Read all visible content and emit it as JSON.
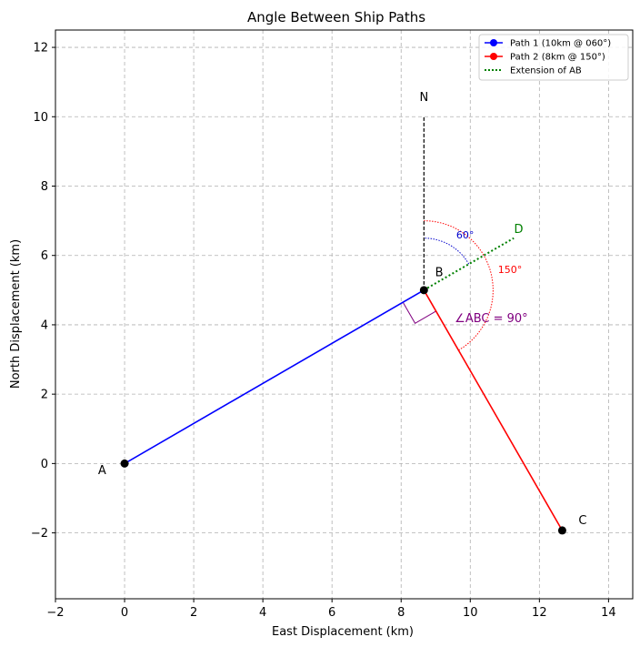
{
  "chart_data": {
    "type": "line",
    "title": "Angle Between Ship Paths",
    "xlabel": "East Displacement (km)",
    "ylabel": "North Displacement (km)",
    "xlim": [
      -2,
      14.7
    ],
    "ylim": [
      -3.9,
      12.5
    ],
    "xticks": [
      -2,
      0,
      2,
      4,
      6,
      8,
      10,
      12,
      14
    ],
    "yticks": [
      -2,
      0,
      2,
      4,
      6,
      8,
      10,
      12
    ],
    "tick_labels_x": [
      "−2",
      "0",
      "2",
      "4",
      "6",
      "8",
      "10",
      "12",
      "14"
    ],
    "tick_labels_y": [
      "−2",
      "0",
      "2",
      "4",
      "6",
      "8",
      "10",
      "12"
    ],
    "grid": true,
    "legend_position": "top-right",
    "series": [
      {
        "name": "Path 1 (10km @ 060°)",
        "color": "#0000ff",
        "style": "solid",
        "marker": "circle",
        "x": [
          0,
          8.66
        ],
        "y": [
          0,
          5.0
        ]
      },
      {
        "name": "Path 2 (8km @ 150°)",
        "color": "#ff0000",
        "style": "solid",
        "marker": "circle",
        "x": [
          8.66,
          12.66
        ],
        "y": [
          5.0,
          -1.93
        ]
      },
      {
        "name": "Extension of AB",
        "color": "#008000",
        "style": "dotted",
        "marker": "none",
        "x": [
          8.66,
          11.26
        ],
        "y": [
          5.0,
          6.5
        ]
      }
    ],
    "north_line": {
      "x": [
        8.66,
        8.66
      ],
      "y": [
        5.0,
        10.0
      ],
      "label": "N",
      "label_xy": [
        8.66,
        10.45
      ]
    },
    "points": [
      {
        "label": "A",
        "x": 0,
        "y": 0,
        "label_xy": [
          -0.65,
          -0.3
        ]
      },
      {
        "label": "B",
        "x": 8.66,
        "y": 5.0,
        "label_xy": [
          9.1,
          5.4
        ]
      },
      {
        "label": "C",
        "x": 12.66,
        "y": -1.93,
        "label_xy": [
          13.25,
          -1.75
        ]
      }
    ],
    "annotations": {
      "D": {
        "text": "D",
        "x": 11.4,
        "y": 6.75,
        "color": "#008000"
      },
      "angle60": {
        "text": "60°",
        "x": 9.85,
        "y": 6.6,
        "color": "#0000cc",
        "radius": 1.5,
        "from_deg": 30,
        "to_deg": 90
      },
      "angle150": {
        "text": "150°",
        "x": 11.15,
        "y": 5.6,
        "color": "#ff0000",
        "radius": 2.0,
        "from_deg": -60,
        "to_deg": 90
      },
      "right_angle": {
        "text": "∠ABC = 90°",
        "x": 9.55,
        "y": 4.2,
        "color": "#800080",
        "size": 0.7
      }
    }
  }
}
